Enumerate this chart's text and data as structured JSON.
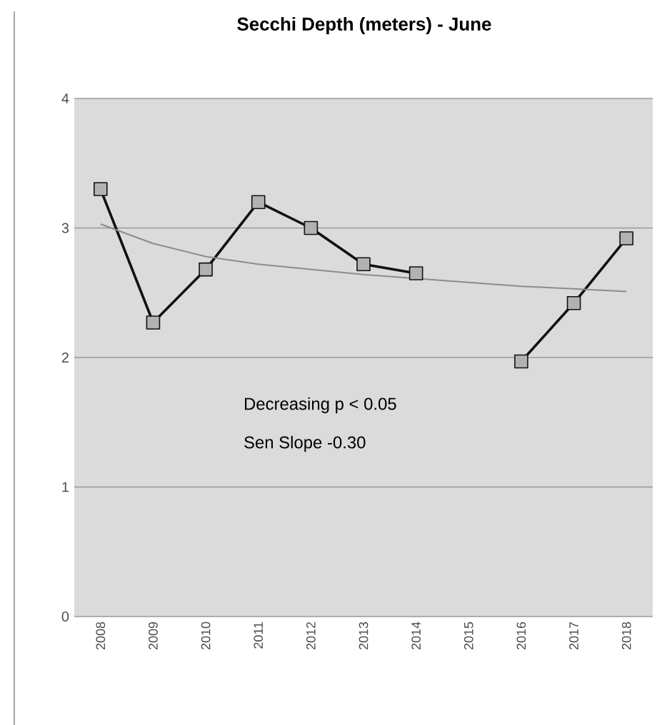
{
  "chart_data": {
    "type": "line",
    "title": "Secchi Depth (meters) - June",
    "categories": [
      "2008",
      "2009",
      "2010",
      "2011",
      "2012",
      "2013",
      "2014",
      "2015",
      "2016",
      "2017",
      "2018"
    ],
    "series": [
      {
        "color": "#111111",
        "values": [
          3.3,
          2.27,
          2.68,
          3.2,
          3.0,
          2.72,
          2.65,
          null,
          1.97,
          2.42,
          2.92
        ]
      },
      {
        "type": "line",
        "color": "#8c8c8c",
        "marker": "none",
        "values": [
          3.03,
          2.88,
          2.78,
          2.72,
          2.68,
          2.64,
          2.61,
          2.58,
          2.55,
          2.53,
          2.51
        ]
      }
    ],
    "ylim": [
      0,
      4
    ],
    "yticks": [
      0,
      1,
      2,
      3,
      4
    ],
    "grid": "y",
    "marker": "square",
    "annotations": [
      "Decreasing p < 0.05",
      "Sen Slope -0.30"
    ]
  }
}
